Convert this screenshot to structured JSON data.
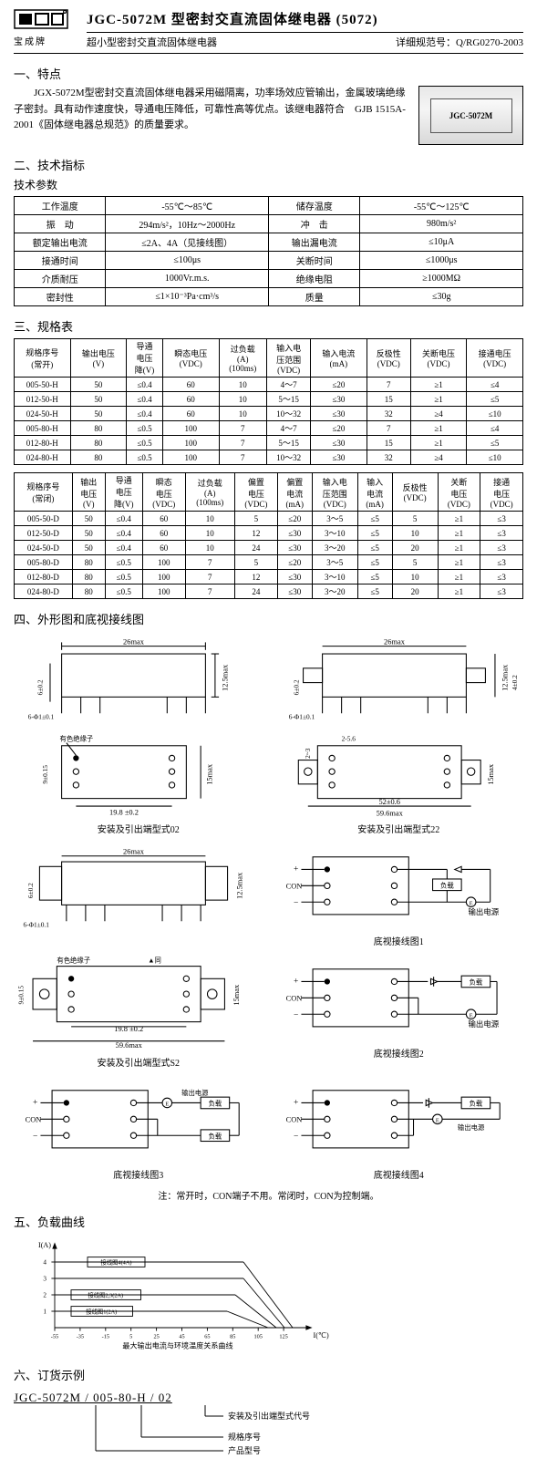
{
  "header": {
    "brand": "宝成牌",
    "title": "JGC-5072M  型密封交直流固体继电器 (5072)",
    "subtitle": "超小型密封交直流固体继电器",
    "spec_no": "详细规范号：Q/RG0270-2003"
  },
  "product_label": "JGC-5072M",
  "s1": {
    "title": "一、特点",
    "text": "　　JGX-5072M型密封交直流固体继电器采用磁隔离，功率场效应管输出，金属玻璃绝缘子密封。具有动作速度快，导通电压降低，可靠性高等优点。该继电器符合　GJB 1515A-2001《固体继电器总规范》的质量要求。"
  },
  "s2": {
    "title": "二、技术指标",
    "sub": "技术参数",
    "rows": [
      [
        "工作温度",
        "-55℃～85℃",
        "储存温度",
        "-55℃～125℃"
      ],
      [
        "振　动",
        "294m/s²，10Hz～2000Hz",
        "冲　击",
        "980m/s²"
      ],
      [
        "额定输出电流",
        "≤2A、4A（见接线图）",
        "输出漏电流",
        "≤10μA"
      ],
      [
        "接通时间",
        "≤100μs",
        "关断时间",
        "≤1000μs"
      ],
      [
        "介质耐压",
        "1000Vr.m.s.",
        "绝缘电阻",
        "≥1000MΩ"
      ],
      [
        "密封性",
        "≤1×10⁻³Pa·cm³/s",
        "质量",
        "≤30g"
      ]
    ]
  },
  "s3": {
    "title": "三、规格表",
    "t1_headers": [
      "规格序号\n(常开)",
      "输出电压\n(V)",
      "导通\n电压\n降(V)",
      "瞬态电压\n(VDC)",
      "过负载\n(A)\n(100ms)",
      "输入电\n压范围\n(VDC)",
      "输入电流\n(mA)",
      "反极性\n(VDC)",
      "关断电压\n(VDC)",
      "接通电压\n(VDC)"
    ],
    "t1_rows": [
      [
        "005-50-H",
        "50",
        "≤0.4",
        "60",
        "10",
        "4～7",
        "≤20",
        "7",
        "≥1",
        "≤4"
      ],
      [
        "012-50-H",
        "50",
        "≤0.4",
        "60",
        "10",
        "5～15",
        "≤30",
        "15",
        "≥1",
        "≤5"
      ],
      [
        "024-50-H",
        "50",
        "≤0.4",
        "60",
        "10",
        "10～32",
        "≤30",
        "32",
        "≥4",
        "≤10"
      ],
      [
        "005-80-H",
        "80",
        "≤0.5",
        "100",
        "7",
        "4～7",
        "≤20",
        "7",
        "≥1",
        "≤4"
      ],
      [
        "012-80-H",
        "80",
        "≤0.5",
        "100",
        "7",
        "5～15",
        "≤30",
        "15",
        "≥1",
        "≤5"
      ],
      [
        "024-80-H",
        "80",
        "≤0.5",
        "100",
        "7",
        "10～32",
        "≤30",
        "32",
        "≥4",
        "≤10"
      ]
    ],
    "t2_headers": [
      "规格序号\n(常闭)",
      "输出\n电压\n(V)",
      "导通\n电压\n降(V)",
      "瞬态\n电压\n(VDC)",
      "过负载\n(A)\n(100ms)",
      "偏置\n电压\n(VDC)",
      "偏置\n电流\n(mA)",
      "输入电\n压范围\n(VDC)",
      "输入\n电流\n(mA)",
      "反极性\n(VDC)",
      "关断\n电压\n(VDC)",
      "接通\n电压\n(VDC)"
    ],
    "t2_rows": [
      [
        "005-50-D",
        "50",
        "≤0.4",
        "60",
        "10",
        "5",
        "≤20",
        "3～5",
        "≤5",
        "5",
        "≥1",
        "≤3"
      ],
      [
        "012-50-D",
        "50",
        "≤0.4",
        "60",
        "10",
        "12",
        "≤30",
        "3～10",
        "≤5",
        "10",
        "≥1",
        "≤3"
      ],
      [
        "024-50-D",
        "50",
        "≤0.4",
        "60",
        "10",
        "24",
        "≤30",
        "3～20",
        "≤5",
        "20",
        "≥1",
        "≤3"
      ],
      [
        "005-80-D",
        "80",
        "≤0.5",
        "100",
        "7",
        "5",
        "≤20",
        "3～5",
        "≤5",
        "5",
        "≥1",
        "≤3"
      ],
      [
        "012-80-D",
        "80",
        "≤0.5",
        "100",
        "7",
        "12",
        "≤30",
        "3～10",
        "≤5",
        "10",
        "≥1",
        "≤3"
      ],
      [
        "024-80-D",
        "80",
        "≤0.5",
        "100",
        "7",
        "24",
        "≤30",
        "3～20",
        "≤5",
        "20",
        "≥1",
        "≤3"
      ]
    ]
  },
  "s4": {
    "title": "四、外形图和底视接线图",
    "cap02": "安装及引出端型式02",
    "cap22": "安装及引出端型式22",
    "capS2": "安装及引出端型式S2",
    "wiring1": "底视接线图1",
    "wiring2": "底视接线图2",
    "wiring3": "底视接线图3",
    "wiring4": "底视接线图4",
    "out_label": "输出电源",
    "load_label": "负载",
    "note": "注：常开时，CON端子不用。常闭时，CON为控制端。",
    "color_term": "有色绝缘子",
    "dim_26max": "26max",
    "dim_125max": "12.5max",
    "dim_602": "6±0.2",
    "dim_6phi": "6-Φ1±0.1",
    "dim_198": "19.8 ±0.2",
    "dim_15max": "15max",
    "dim_905": "9±0.15",
    "dim_256": "2-5.6",
    "dim_23": "2~3",
    "dim_52": "52±0.6",
    "dim_596": "59.6max",
    "dim_402": "4±0.2",
    "tri": "▲同"
  },
  "s5": {
    "title": "五、负载曲线",
    "y_label": "I(A)",
    "x_label": "I(℃)",
    "caption": "最大输出电流与环境温度关系曲线",
    "line4": "接线图4(4A)",
    "line23": "接线图2,3(2A)",
    "line1": "接线图1(2A)",
    "x_ticks": [
      "-55",
      "-35",
      "-15",
      "5",
      "25",
      "45",
      "65",
      "85",
      "105",
      "125"
    ],
    "y_ticks": [
      "1",
      "2",
      "3",
      "4"
    ]
  },
  "s6": {
    "title": "六、订货示例",
    "example": "JGC-5072M / 005-80-H / 02",
    "l1": "安装及引出端型式代号",
    "l2": "规格序号",
    "l3": "产品型号"
  }
}
